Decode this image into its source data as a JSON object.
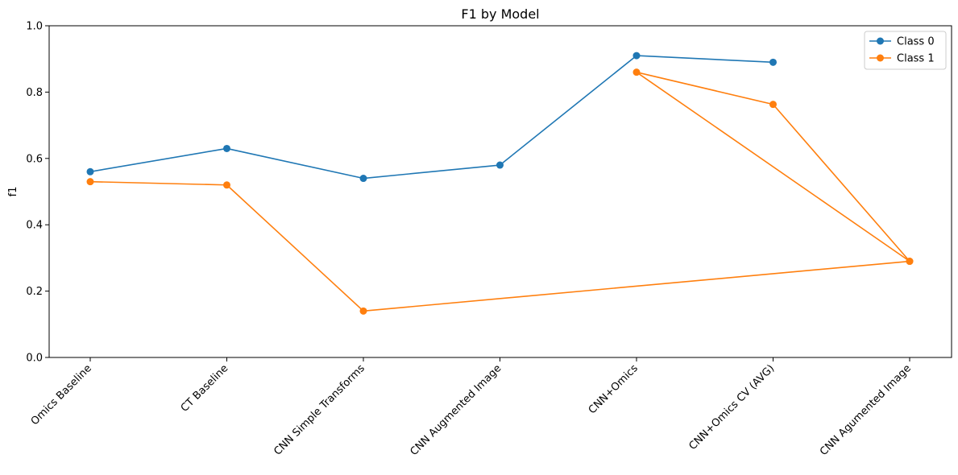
{
  "chart_data": {
    "type": "line",
    "title": "F1 by Model",
    "xlabel": "",
    "ylabel": "f1",
    "ylim": [
      0,
      1
    ],
    "yticks": [
      "0.0",
      "0.2",
      "0.4",
      "0.6",
      "0.8",
      "1.0"
    ],
    "ytick_values": [
      0,
      0.2,
      0.4,
      0.6,
      0.8,
      1.0
    ],
    "categories": [
      "Omics Baseline",
      "CT Baseline",
      "CNN Simple Transforms",
      "CNN Augmented Image",
      "CNN+Omics",
      "CNN+Omics CV (AVG)",
      "CNN Agumented Image"
    ],
    "legend_position": "top-right",
    "grid": false,
    "series": [
      {
        "name": "Class 0",
        "color": "#1f77b4",
        "points": [
          {
            "x": "Omics Baseline",
            "y": 0.56
          },
          {
            "x": "CT Baseline",
            "y": 0.63
          },
          {
            "x": "CNN Simple Transforms",
            "y": 0.54
          },
          {
            "x": "CNN Augmented Image",
            "y": 0.58
          },
          {
            "x": "CNN+Omics",
            "y": 0.91
          },
          {
            "x": "CNN+Omics CV (AVG)",
            "y": 0.89
          }
        ]
      },
      {
        "name": "Class 1",
        "color": "#ff7f0e",
        "points": [
          {
            "x": "Omics Baseline",
            "y": 0.53
          },
          {
            "x": "CT Baseline",
            "y": 0.52
          },
          {
            "x": "CNN Simple Transforms",
            "y": 0.14
          },
          {
            "x": "CNN Agumented Image",
            "y": 0.29
          },
          {
            "x": "CNN+Omics",
            "y": 0.86
          },
          {
            "x": "CNN+Omics CV (AVG)",
            "y": 0.763
          },
          {
            "x": "CNN Agumented Image",
            "y": 0.29
          }
        ]
      }
    ]
  }
}
